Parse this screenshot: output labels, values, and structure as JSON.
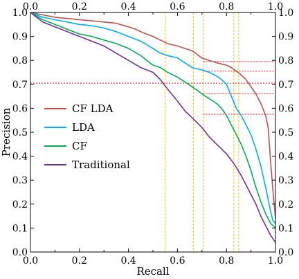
{
  "chart_data": {
    "type": "line",
    "xlabel": "Recall",
    "ylabel": "Precision",
    "xlim": [
      0,
      1
    ],
    "ylim": [
      0,
      1
    ],
    "xticks": [
      "0.0",
      "0.2",
      "0.4",
      "0.6",
      "0.8",
      "1.0"
    ],
    "yticks": [
      "0.0",
      "0.1",
      "0.2",
      "0.3",
      "0.4",
      "0.5",
      "0.6",
      "0.7",
      "0.8",
      "0.9",
      "1.0"
    ],
    "grid": false,
    "legend_position": "center-left",
    "series": [
      {
        "name": "CF LDA",
        "color": "#c0504d",
        "x": [
          0.0,
          0.05,
          0.1,
          0.15,
          0.2,
          0.25,
          0.3,
          0.35,
          0.4,
          0.43,
          0.46,
          0.5,
          0.53,
          0.56,
          0.6,
          0.63,
          0.66,
          0.7,
          0.73,
          0.76,
          0.8,
          0.82,
          0.84,
          0.86,
          0.88,
          0.9,
          0.92,
          0.94,
          0.96,
          0.97,
          0.98,
          0.99,
          1.0
        ],
        "y": [
          1.0,
          0.99,
          0.98,
          0.975,
          0.97,
          0.965,
          0.96,
          0.955,
          0.94,
          0.93,
          0.915,
          0.9,
          0.885,
          0.87,
          0.86,
          0.85,
          0.84,
          0.81,
          0.8,
          0.79,
          0.78,
          0.77,
          0.755,
          0.74,
          0.72,
          0.69,
          0.66,
          0.62,
          0.57,
          0.52,
          0.38,
          0.25,
          0.14
        ]
      },
      {
        "name": "LDA",
        "color": "#00b0f0",
        "x": [
          0.0,
          0.05,
          0.1,
          0.15,
          0.2,
          0.25,
          0.3,
          0.35,
          0.4,
          0.45,
          0.5,
          0.53,
          0.56,
          0.6,
          0.63,
          0.66,
          0.7,
          0.73,
          0.76,
          0.78,
          0.8,
          0.82,
          0.84,
          0.86,
          0.88,
          0.9,
          0.92,
          0.94,
          0.96,
          0.97,
          0.98,
          0.99,
          1.0
        ],
        "y": [
          1.0,
          0.98,
          0.97,
          0.96,
          0.95,
          0.945,
          0.935,
          0.92,
          0.9,
          0.88,
          0.85,
          0.83,
          0.82,
          0.81,
          0.79,
          0.77,
          0.76,
          0.75,
          0.735,
          0.72,
          0.7,
          0.65,
          0.6,
          0.57,
          0.53,
          0.49,
          0.43,
          0.36,
          0.27,
          0.22,
          0.17,
          0.13,
          0.12
        ]
      },
      {
        "name": "CF",
        "color": "#00b050",
        "x": [
          0.0,
          0.05,
          0.1,
          0.15,
          0.2,
          0.25,
          0.3,
          0.35,
          0.4,
          0.45,
          0.5,
          0.53,
          0.56,
          0.6,
          0.63,
          0.66,
          0.7,
          0.73,
          0.76,
          0.78,
          0.8,
          0.82,
          0.84,
          0.86,
          0.88,
          0.9,
          0.92,
          0.94,
          0.96,
          0.98,
          1.0
        ],
        "y": [
          1.0,
          0.97,
          0.95,
          0.93,
          0.91,
          0.9,
          0.885,
          0.87,
          0.85,
          0.82,
          0.78,
          0.77,
          0.75,
          0.73,
          0.71,
          0.69,
          0.66,
          0.64,
          0.62,
          0.6,
          0.57,
          0.53,
          0.49,
          0.45,
          0.4,
          0.34,
          0.27,
          0.21,
          0.16,
          0.12,
          0.1
        ]
      },
      {
        "name": "Traditional",
        "color": "#7030a0",
        "x": [
          0.0,
          0.05,
          0.1,
          0.15,
          0.2,
          0.25,
          0.3,
          0.35,
          0.4,
          0.45,
          0.5,
          0.53,
          0.56,
          0.6,
          0.63,
          0.66,
          0.7,
          0.73,
          0.76,
          0.8,
          0.83,
          0.86,
          0.88,
          0.9,
          0.92,
          0.94,
          0.96,
          0.98,
          1.0
        ],
        "y": [
          1.0,
          0.96,
          0.94,
          0.92,
          0.9,
          0.88,
          0.86,
          0.83,
          0.8,
          0.77,
          0.75,
          0.72,
          0.68,
          0.63,
          0.59,
          0.56,
          0.52,
          0.48,
          0.45,
          0.41,
          0.37,
          0.32,
          0.28,
          0.24,
          0.2,
          0.15,
          0.11,
          0.07,
          0.04
        ]
      }
    ],
    "reference_lines": {
      "color": "#ff0000",
      "vertical_color": "#ffc000",
      "vertical_x": [
        0.55,
        0.665,
        0.705,
        0.83,
        0.85
      ],
      "horizontal": [
        {
          "y": 0.795,
          "x_from": 0.705,
          "x_to": 1.0
        },
        {
          "y": 0.755,
          "x_from": 0.705,
          "x_to": 1.0
        },
        {
          "y": 0.705,
          "x_from": 0.0,
          "x_to": 1.0
        },
        {
          "y": 0.66,
          "x_from": 0.705,
          "x_to": 1.0
        },
        {
          "y": 0.575,
          "x_from": 0.705,
          "x_to": 1.0
        }
      ]
    }
  }
}
